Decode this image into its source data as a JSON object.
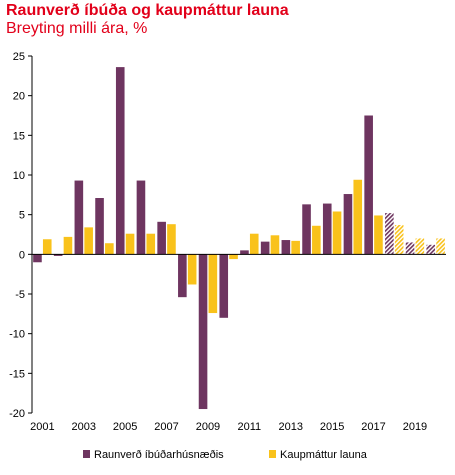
{
  "chart_data": {
    "type": "bar",
    "title": "Raunverð íbúða og kaupmáttur launa",
    "subtitle": "Breyting milli ára, %",
    "xlabel": "",
    "ylabel": "",
    "ylim": [
      -20,
      25
    ],
    "yticks": [
      -20,
      -15,
      -10,
      -5,
      0,
      5,
      10,
      15,
      20,
      25
    ],
    "categories": [
      "2001",
      "2002",
      "2003",
      "2004",
      "2005",
      "2006",
      "2007",
      "2008",
      "2009",
      "2010",
      "2011",
      "2012",
      "2013",
      "2014",
      "2015",
      "2016",
      "2017",
      "2018",
      "2019",
      "2020"
    ],
    "xtick_labels": [
      "2001",
      "2003",
      "2005",
      "2007",
      "2009",
      "2011",
      "2013",
      "2015",
      "2017",
      "2019"
    ],
    "forecast_from": "2018",
    "grid": false,
    "legend_position": "bottom",
    "series": [
      {
        "name": "Raunverð íbúðarhúsnæðis",
        "color": "#6e3560",
        "values": [
          -1.0,
          -0.2,
          9.3,
          7.1,
          23.6,
          9.3,
          4.1,
          -5.4,
          -19.5,
          -8.0,
          0.5,
          1.6,
          1.8,
          6.3,
          6.4,
          7.6,
          17.5,
          5.2,
          1.5,
          1.2
        ]
      },
      {
        "name": "Kaupmáttur launa",
        "color": "#f9c21b",
        "values": [
          1.9,
          2.2,
          3.4,
          1.4,
          2.6,
          2.6,
          3.8,
          -3.8,
          -7.4,
          -0.6,
          2.6,
          2.4,
          1.7,
          3.6,
          5.4,
          9.4,
          4.9,
          3.7,
          2.0,
          2.0
        ]
      }
    ]
  }
}
